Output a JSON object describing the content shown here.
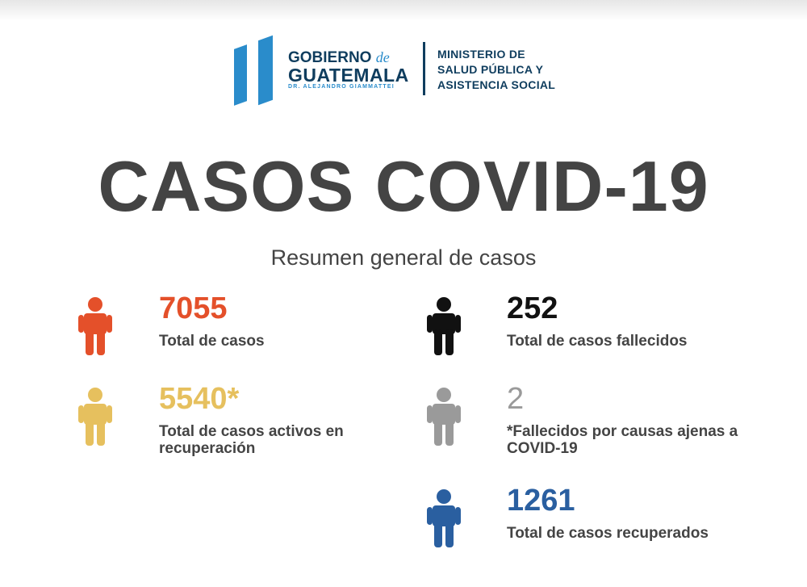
{
  "logo": {
    "gobierno": "GOBIERNO",
    "de": "de",
    "guatemala": "GUATEMALA",
    "president": "DR. ALEJANDRO GIAMMATTEI",
    "ministry": [
      "MINISTERIO DE",
      "SALUD PÚBLICA Y",
      "ASISTENCIA SOCIAL"
    ]
  },
  "title": "CASOS COVID-19",
  "subtitle": "Resumen general de casos",
  "stats": [
    {
      "value": "7055",
      "label": "Total de casos",
      "color": "#e4502a",
      "icon": "person-icon"
    },
    {
      "value": "5540*",
      "label": "Total de casos activos en recuperación",
      "color": "#e6c05e",
      "icon": "person-icon"
    },
    {
      "value": "252",
      "label": "Total de casos fallecidos",
      "color": "#111111",
      "icon": "person-icon"
    },
    {
      "value": "2",
      "label": "*Fallecidos por causas ajenas a COVID-19",
      "color": "#9a9a9a",
      "icon": "person-icon"
    },
    {
      "value": "1261",
      "label": "Total de casos recuperados",
      "color": "#2a5fa0",
      "icon": "person-icon"
    }
  ]
}
